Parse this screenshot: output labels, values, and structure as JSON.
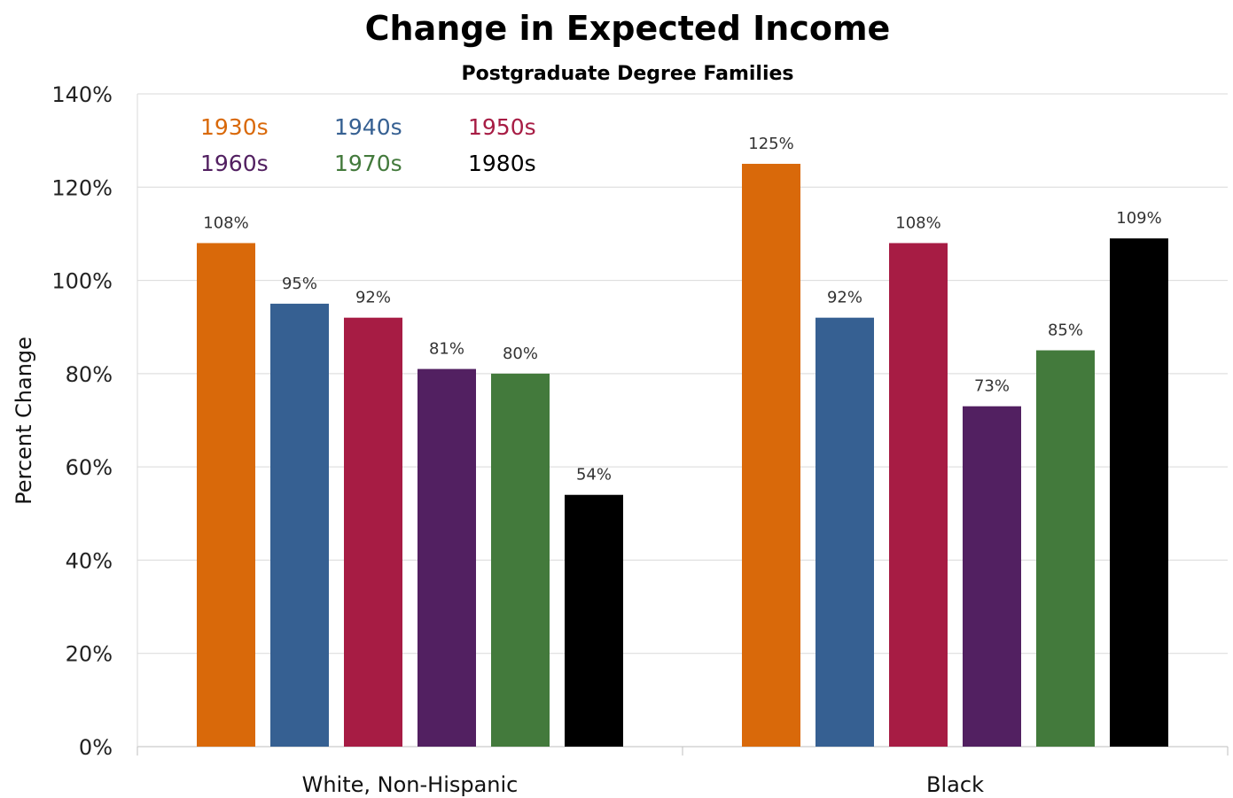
{
  "chart_data": {
    "type": "bar",
    "title": "Change in Expected Income",
    "subtitle": "Postgraduate  Degree Families",
    "xlabel": "",
    "ylabel": "Percent Change",
    "ylim": [
      0,
      140
    ],
    "y_tick_step": 20,
    "y_tick_format": "percent",
    "grid": true,
    "legend_placement": "top-left",
    "categories": [
      "White, Non-Hispanic",
      "Black"
    ],
    "series": [
      {
        "name": "1930s",
        "color": "#d9690a",
        "values": [
          108,
          125
        ],
        "labels": [
          "108%",
          "125%"
        ]
      },
      {
        "name": "1940s",
        "color": "#366092",
        "values": [
          95,
          92
        ],
        "labels": [
          "95%",
          "92%"
        ]
      },
      {
        "name": "1950s",
        "color": "#a71c44",
        "values": [
          92,
          108
        ],
        "labels": [
          "92%",
          "108%"
        ]
      },
      {
        "name": "1960s",
        "color": "#522061",
        "values": [
          81,
          73
        ],
        "labels": [
          "81%",
          "73%"
        ]
      },
      {
        "name": "1970s",
        "color": "#437a3c",
        "values": [
          80,
          85
        ],
        "labels": [
          "80%",
          "85%"
        ]
      },
      {
        "name": "1980s",
        "color": "#000000",
        "values": [
          54,
          109
        ],
        "labels": [
          "54%",
          "109%"
        ]
      }
    ]
  }
}
